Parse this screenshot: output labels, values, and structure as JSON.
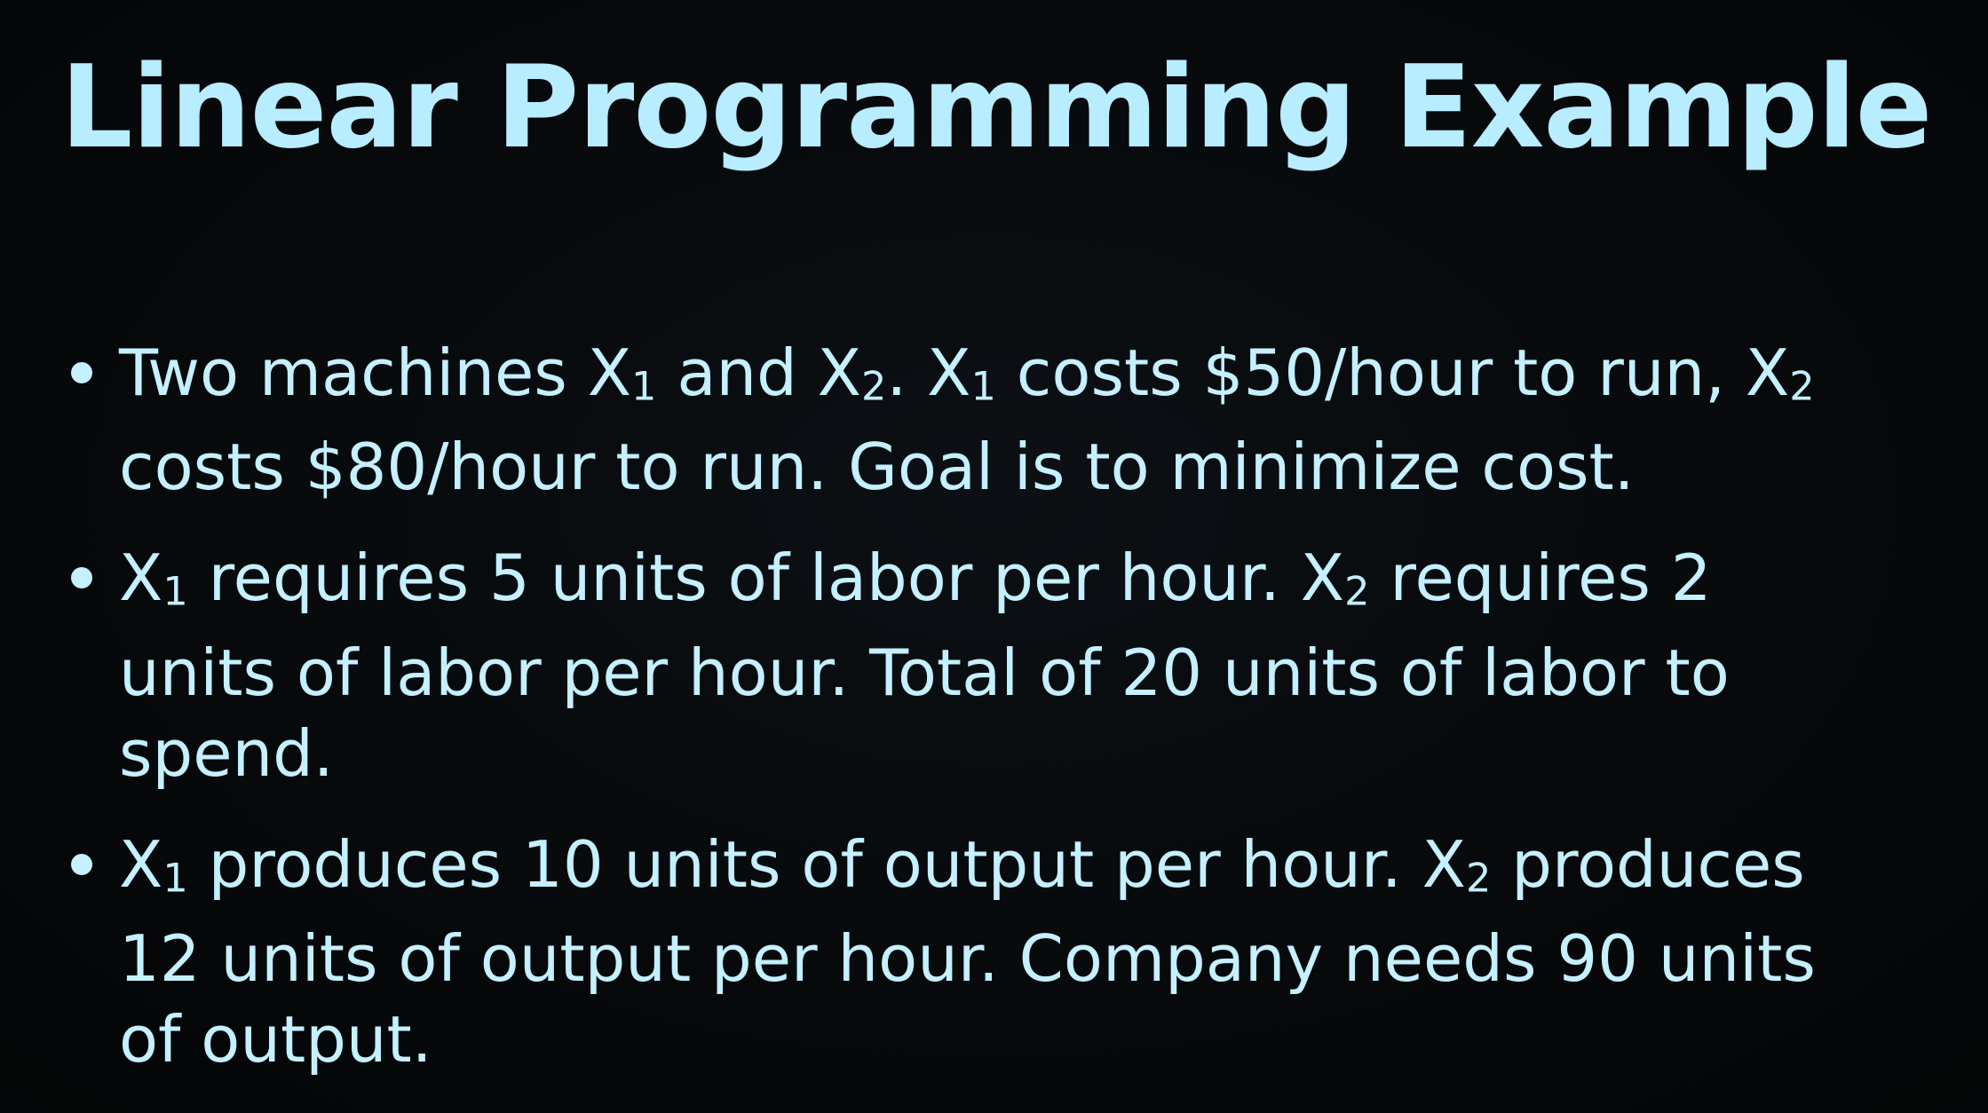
{
  "slide": {
    "title": "Linear Programming Example",
    "bullets": [
      {
        "lines": [
          [
            {
              "t": "Two machines X"
            },
            {
              "t": "1",
              "sub": true
            },
            {
              "t": " and X"
            },
            {
              "t": "2",
              "sub": true
            },
            {
              "t": ". X"
            },
            {
              "t": "1",
              "sub": true
            },
            {
              "t": " costs $50/hour to run, X"
            },
            {
              "t": "2",
              "sub": true
            }
          ],
          [
            {
              "t": "costs $80/hour to run. Goal is to minimize cost."
            }
          ]
        ]
      },
      {
        "lines": [
          [
            {
              "t": "X"
            },
            {
              "t": "1",
              "sub": true
            },
            {
              "t": " requires 5 units of labor per hour. X"
            },
            {
              "t": "2",
              "sub": true
            },
            {
              "t": " requires 2"
            }
          ],
          [
            {
              "t": "units of labor per hour. Total of 20 units of labor to"
            }
          ],
          [
            {
              "t": "spend."
            }
          ]
        ]
      },
      {
        "lines": [
          [
            {
              "t": "X"
            },
            {
              "t": "1",
              "sub": true
            },
            {
              "t": " produces 10 units of output per hour. X"
            },
            {
              "t": "2",
              "sub": true
            },
            {
              "t": " produces"
            }
          ],
          [
            {
              "t": "12 units of output per hour. Company needs 90 units"
            }
          ],
          [
            {
              "t": "of output."
            }
          ]
        ]
      }
    ]
  }
}
